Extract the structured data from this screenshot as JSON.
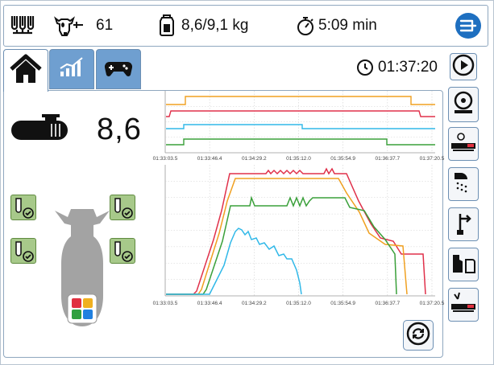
{
  "header": {
    "cow_number": "61",
    "feed_amount": "8,6/9,1 kg",
    "duration": "5:09 min"
  },
  "tabs": [
    {
      "name": "home",
      "active": true
    },
    {
      "name": "charts",
      "active": false
    },
    {
      "name": "control",
      "active": false
    }
  ],
  "clock": {
    "time": "01:37:20"
  },
  "main": {
    "amount": "8,6"
  },
  "colors": {
    "accent": "#6f9fd0",
    "status_ok": "#a7c98a",
    "line_red": "#e0304a",
    "line_orange": "#f0a020",
    "line_green": "#3aa03a",
    "line_cyan": "#30b8e8"
  },
  "chart_data": [
    {
      "type": "line",
      "x_ticks": [
        "01:33:03.5",
        "01:33:46.4",
        "01:34:29.2",
        "01:35:12.0",
        "01:35:54.9",
        "01:36:37.7",
        "01:37:20.5"
      ],
      "series": [
        {
          "color": "#f0a020",
          "level": "high"
        },
        {
          "color": "#e0304a",
          "level": "mid-high"
        },
        {
          "color": "#30b8e8",
          "level": "mid-low"
        },
        {
          "color": "#3aa03a",
          "level": "low"
        }
      ]
    },
    {
      "type": "line",
      "x_ticks": [
        "01:33:03.5",
        "01:33:46.4",
        "01:34:29.2",
        "01:35:12.0",
        "01:35:54.9",
        "01:36:37.7",
        "01:37:20.5"
      ],
      "series": [
        {
          "color": "#e0304a"
        },
        {
          "color": "#f0a020"
        },
        {
          "color": "#3aa03a"
        },
        {
          "color": "#30b8e8"
        }
      ]
    }
  ]
}
